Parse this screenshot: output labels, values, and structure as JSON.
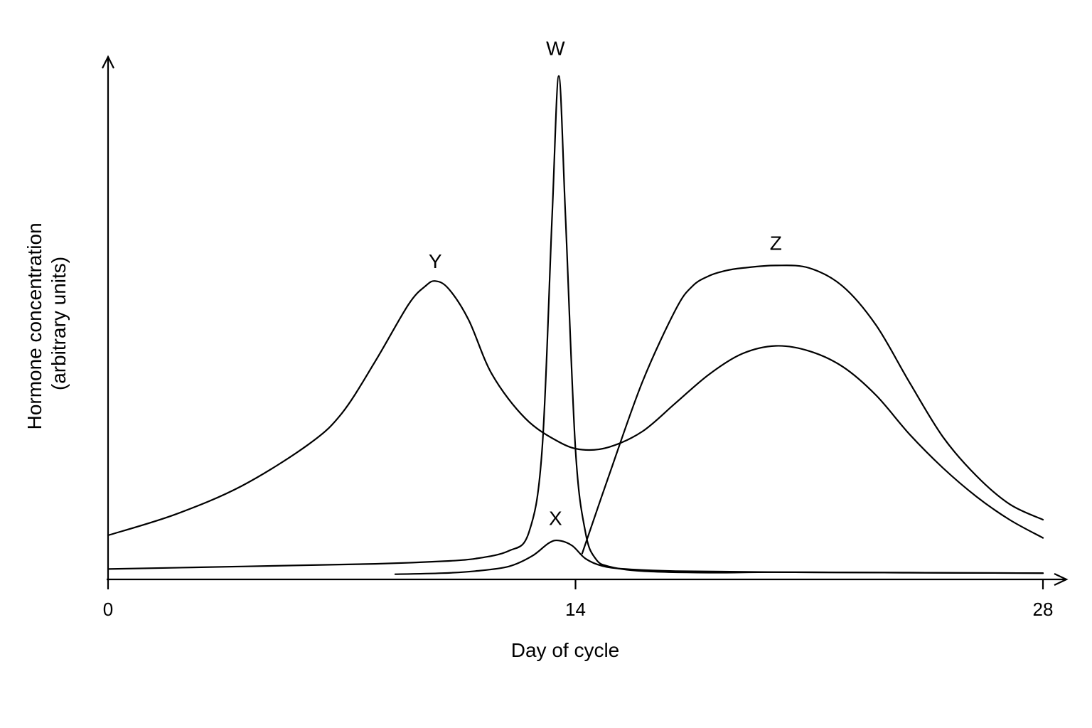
{
  "chart_data": {
    "type": "line",
    "xlabel": "Day of cycle",
    "ylabel_lines": [
      "Hormone concentration",
      "(arbitrary units)"
    ],
    "xlim": [
      0,
      28
    ],
    "ylim": [
      0,
      100
    ],
    "x_ticks": [
      {
        "value": 0,
        "label": "0"
      },
      {
        "value": 14,
        "label": "14"
      },
      {
        "value": 28,
        "label": "28"
      }
    ],
    "y_ticks": [],
    "grid": false,
    "series": [
      {
        "name": "W",
        "label_at": [
          13.4,
          101
        ],
        "x": [
          0,
          4,
          8,
          10,
          11,
          12,
          12.6,
          13.0,
          13.3,
          13.5,
          13.7,
          14.0,
          14.3,
          14.6,
          15,
          16,
          18,
          20,
          24,
          28
        ],
        "y": [
          2.0,
          2.5,
          3.0,
          3.5,
          4.0,
          5.5,
          9.0,
          25.0,
          70.0,
          97.0,
          70.0,
          25.0,
          9.0,
          4.0,
          2.5,
          1.6,
          1.3,
          1.4,
          1.3,
          1.2
        ]
      },
      {
        "name": "X",
        "label_at": [
          13.4,
          10.5
        ],
        "x": [
          8.6,
          10,
          11,
          12,
          12.7,
          13.2,
          13.5,
          13.9,
          14.3,
          14.8,
          15.5,
          17,
          20,
          24,
          28
        ],
        "y": [
          1.0,
          1.2,
          1.6,
          2.5,
          4.5,
          7.0,
          7.5,
          6.5,
          4.0,
          2.6,
          2.0,
          1.6,
          1.4,
          1.3,
          1.2
        ]
      },
      {
        "name": "Y",
        "x": [
          0,
          2,
          4,
          6,
          7,
          8,
          9,
          9.5,
          9.8,
          10.2,
          10.8,
          11.5,
          12.5,
          13.5,
          14.2,
          15,
          16,
          17,
          18,
          19,
          20,
          21,
          22,
          23,
          24,
          25,
          26,
          27,
          28
        ],
        "y": [
          8.5,
          12.5,
          18.0,
          26.0,
          32.0,
          42.0,
          53.0,
          56.5,
          57.5,
          56.0,
          50.0,
          39.5,
          31.0,
          26.5,
          25.0,
          25.5,
          28.5,
          34.0,
          39.5,
          43.5,
          45.0,
          44.0,
          41.0,
          35.5,
          28.0,
          21.5,
          16.0,
          11.5,
          8.0
        ],
        "label_at": [
          9.8,
          60.0
        ]
      },
      {
        "name": "Z",
        "x": [
          14.2,
          15,
          16,
          17,
          17.5,
          18,
          18.5,
          19,
          20,
          21,
          22,
          23,
          24,
          25,
          26,
          27,
          28
        ],
        "y": [
          5.0,
          20.0,
          38.0,
          52.0,
          56.5,
          58.5,
          59.5,
          60.0,
          60.5,
          60.0,
          56.5,
          49.0,
          38.0,
          27.5,
          20.0,
          14.5,
          11.5
        ],
        "label_at": [
          20.0,
          63.5
        ]
      }
    ]
  }
}
